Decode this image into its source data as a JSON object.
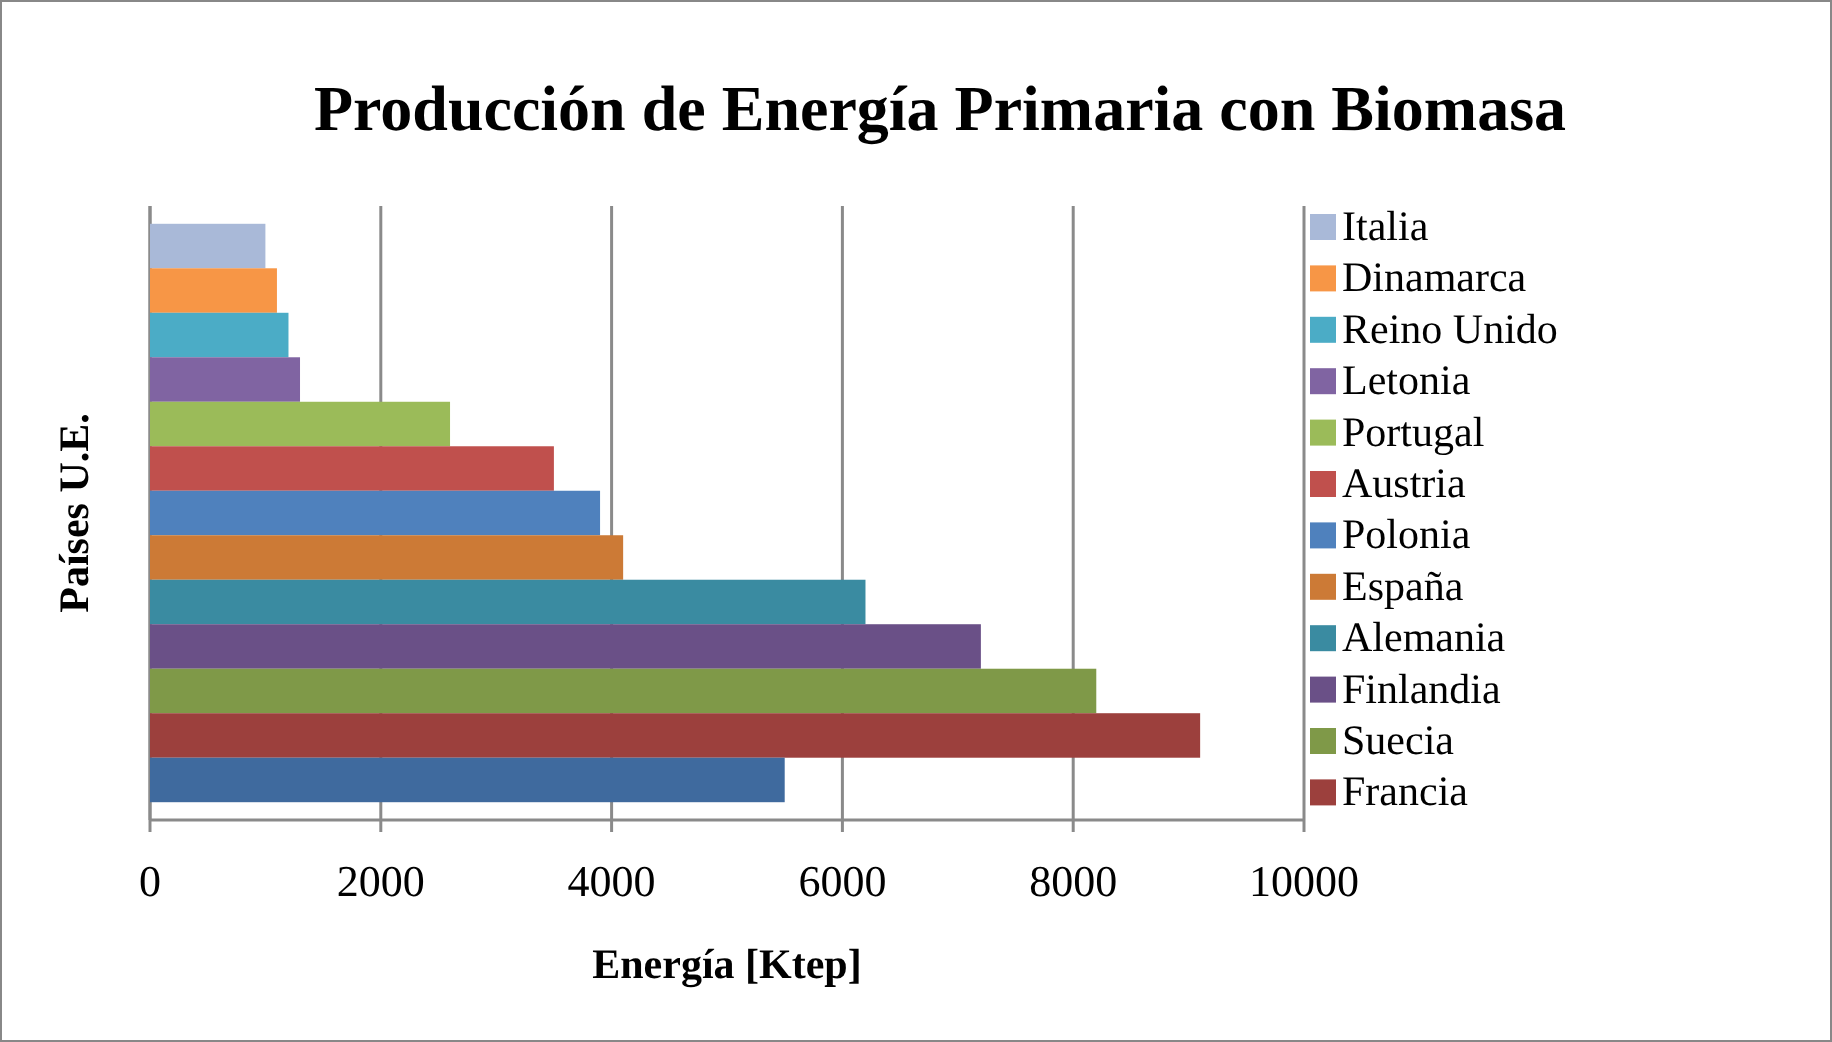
{
  "chart_data": {
    "type": "bar",
    "orientation": "horizontal",
    "stacked": true,
    "title": "Producción de Energía Primaria con Biomasa",
    "xlabel": "Energía [Ktep]",
    "ylabel": "Países U.E.",
    "categories": [
      null,
      null,
      null,
      null,
      null,
      null,
      null,
      null,
      null,
      null,
      null,
      null,
      null
    ],
    "series": [
      {
        "name": "Italia",
        "color": "#a9b9d8",
        "values": [
          1000,
          null,
          null,
          null,
          null,
          null,
          null,
          null,
          null,
          null,
          null,
          null,
          null
        ]
      },
      {
        "name": "Dinamarca",
        "color": "#f79646",
        "values": [
          null,
          1100,
          null,
          null,
          null,
          null,
          null,
          null,
          null,
          null,
          null,
          null,
          null
        ]
      },
      {
        "name": "Reino Unido",
        "color": "#4bacc6",
        "values": [
          null,
          null,
          1200,
          null,
          null,
          null,
          null,
          null,
          null,
          null,
          null,
          null,
          null
        ]
      },
      {
        "name": "Letonia",
        "color": "#8064a2",
        "values": [
          null,
          null,
          null,
          1300,
          null,
          null,
          null,
          null,
          null,
          null,
          null,
          null,
          null
        ]
      },
      {
        "name": "Portugal",
        "color": "#9bbb59",
        "values": [
          null,
          null,
          null,
          null,
          2600,
          null,
          null,
          null,
          null,
          null,
          null,
          null,
          null
        ]
      },
      {
        "name": "Austria",
        "color": "#c0504d",
        "values": [
          null,
          null,
          null,
          null,
          null,
          3500,
          null,
          null,
          null,
          null,
          null,
          null,
          null
        ]
      },
      {
        "name": "Polonia",
        "color": "#4f81bd",
        "values": [
          null,
          null,
          null,
          null,
          null,
          null,
          3900,
          null,
          null,
          null,
          null,
          null,
          null
        ]
      },
      {
        "name": "España",
        "color": "#cc7a36",
        "values": [
          null,
          null,
          null,
          null,
          null,
          null,
          null,
          4100,
          null,
          null,
          null,
          null,
          null
        ]
      },
      {
        "name": "Alemania",
        "color": "#3a8ba1",
        "values": [
          null,
          null,
          null,
          null,
          null,
          null,
          null,
          null,
          6200,
          null,
          null,
          null,
          null
        ]
      },
      {
        "name": "Finlandia",
        "color": "#6a5087",
        "values": [
          null,
          null,
          null,
          null,
          null,
          null,
          null,
          null,
          null,
          7200,
          null,
          null,
          null
        ]
      },
      {
        "name": "Suecia",
        "color": "#7f9948",
        "values": [
          null,
          null,
          null,
          null,
          null,
          null,
          null,
          null,
          null,
          null,
          8200,
          null,
          null
        ]
      },
      {
        "name": "Francia",
        "color": "#9c403d",
        "values": [
          null,
          null,
          null,
          null,
          null,
          null,
          null,
          null,
          null,
          null,
          null,
          9100,
          null
        ]
      },
      {
        "color": "#3f6a9e",
        "values": [
          null,
          null,
          null,
          null,
          null,
          null,
          null,
          null,
          null,
          null,
          null,
          null,
          5500
        ]
      }
    ],
    "xlim": [
      0,
      10000
    ],
    "xticks": [
      0,
      2000,
      4000,
      6000,
      8000,
      10000
    ],
    "grid": "x",
    "legend": "right"
  }
}
